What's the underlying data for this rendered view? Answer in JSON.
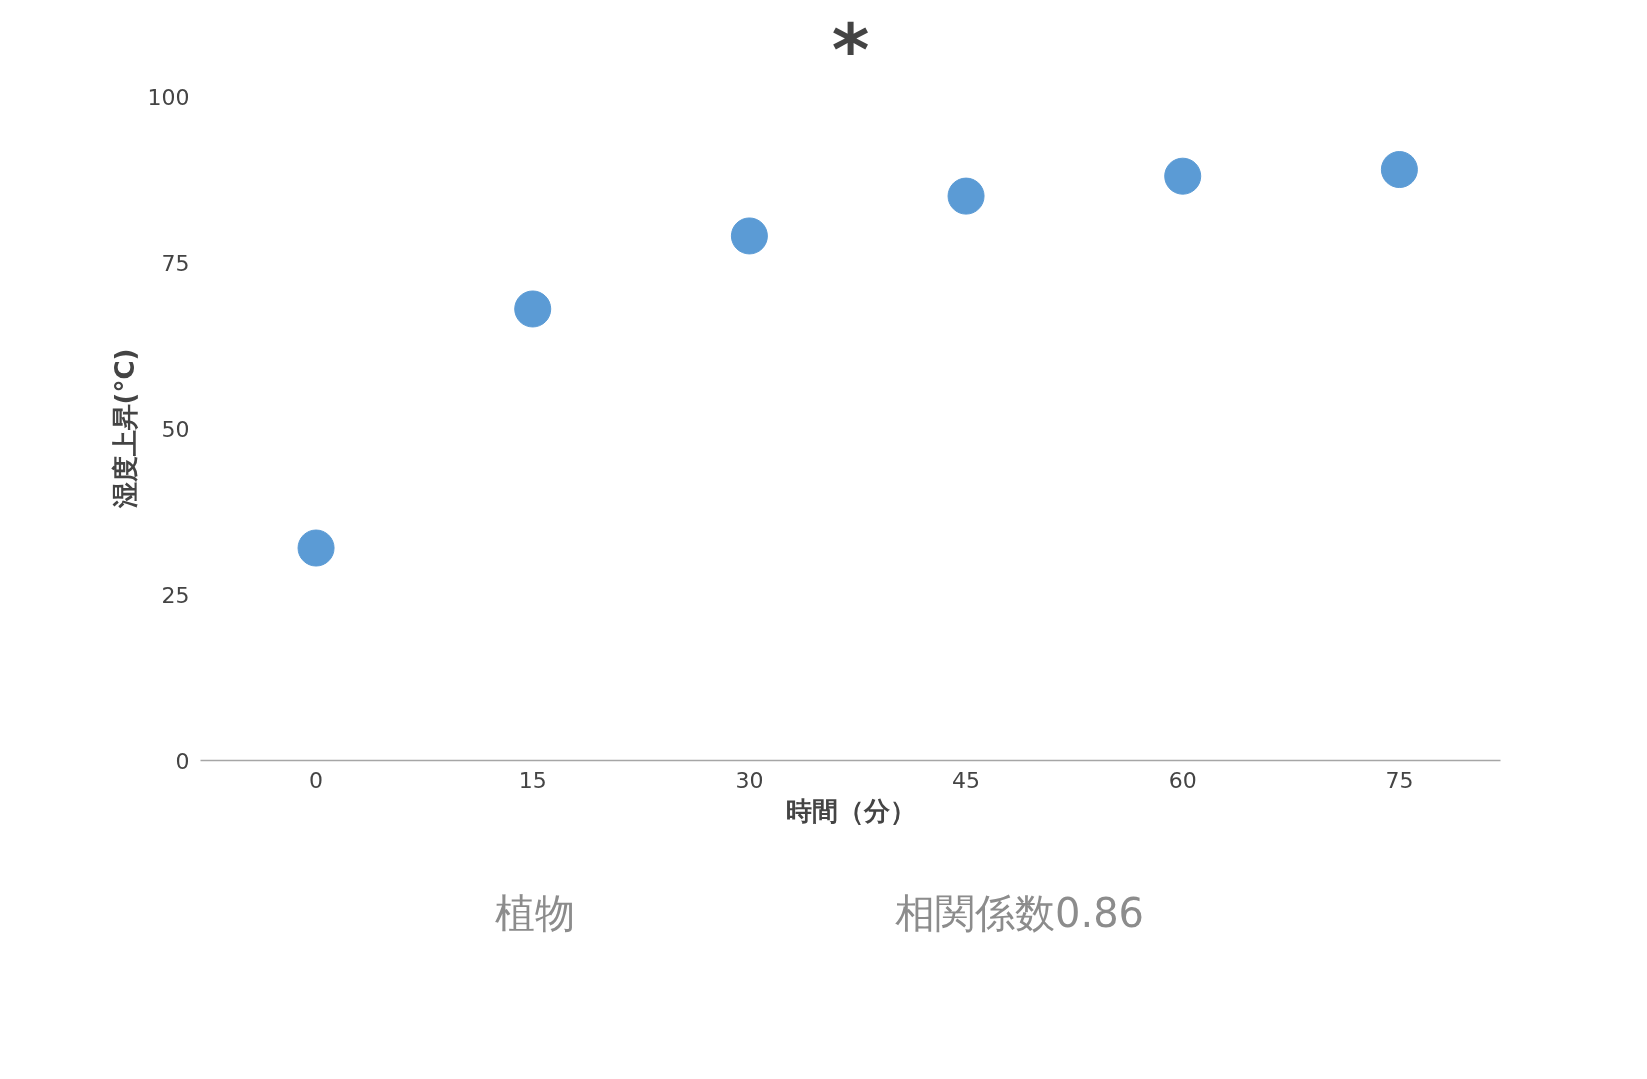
{
  "chart_data": {
    "type": "scatter",
    "title": "*",
    "xlabel": "時間（分）",
    "ylabel": "湿度上昇(°C)",
    "x": [
      0,
      15,
      30,
      45,
      60,
      75
    ],
    "series": [
      {
        "color": "#5b9bd5",
        "values": [
          32,
          68,
          79,
          85,
          88,
          89
        ]
      }
    ],
    "xlim": [
      -8,
      82
    ],
    "ylim": [
      0,
      100
    ],
    "xticks": [
      0,
      15,
      30,
      45,
      60,
      75
    ],
    "yticks": [
      0,
      25,
      50,
      75,
      100
    ],
    "grid": false,
    "marker": "circle",
    "annotations": [
      "植物",
      "相関係数0.86"
    ]
  }
}
